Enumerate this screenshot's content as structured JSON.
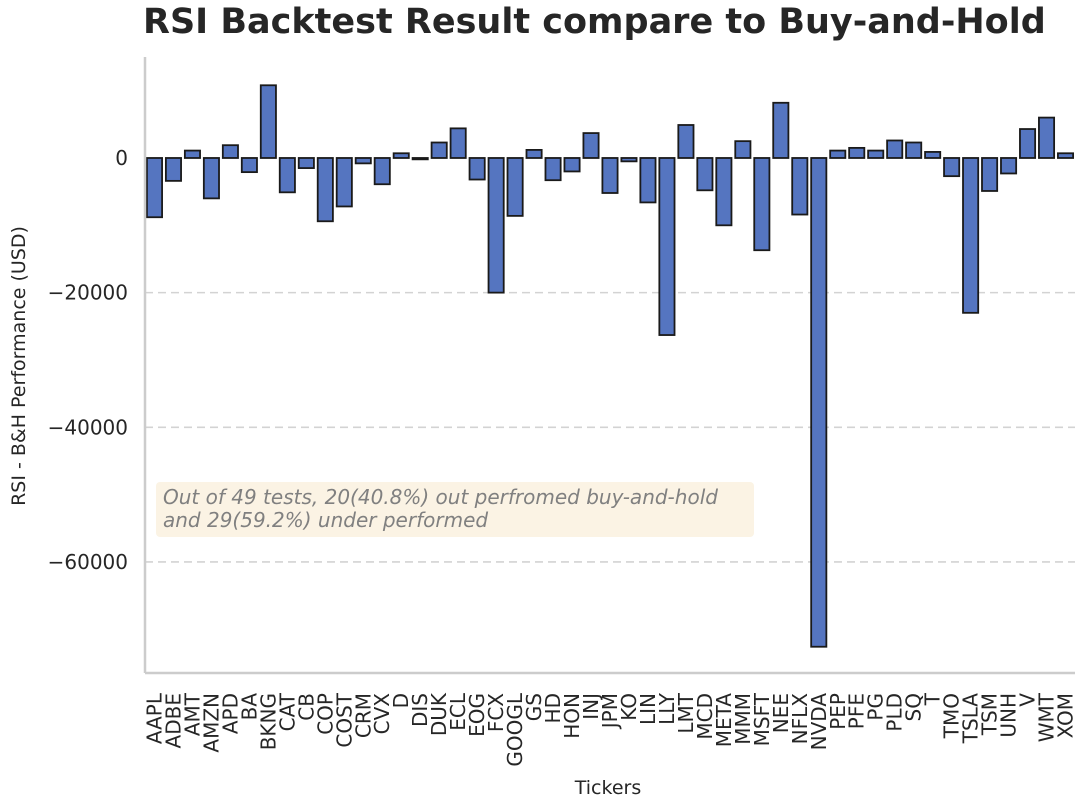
{
  "chart_data": {
    "type": "bar",
    "title": "RSI Backtest Result compare to Buy-and-Hold",
    "xlabel": "Tickers",
    "ylabel": "RSI - B&H Performance (USD)",
    "ylim": [
      -76500,
      15000
    ],
    "yticks": [
      0,
      -20000,
      -40000,
      -60000
    ],
    "ytick_labels": [
      "0",
      "−20000",
      "−40000",
      "−60000"
    ],
    "grid": "horizontal-dashed",
    "categories": [
      "AAPL",
      "ADBE",
      "AMT",
      "AMZN",
      "APD",
      "BA",
      "BKNG",
      "CAT",
      "CB",
      "COP",
      "COST",
      "CRM",
      "CVX",
      "D",
      "DIS",
      "DUK",
      "ECL",
      "EOG",
      "FCX",
      "GOOGL",
      "GS",
      "HD",
      "HON",
      "INJ",
      "JPM",
      "KO",
      "LIN",
      "LLY",
      "LMT",
      "MCD",
      "META",
      "MMM",
      "MSFT",
      "NEE",
      "NFLX",
      "NVDA",
      "PEP",
      "PFE",
      "PG",
      "PLD",
      "SQ",
      "T",
      "TMO",
      "TSLA",
      "TSM",
      "UNH",
      "V",
      "WMT",
      "XOM"
    ],
    "values": [
      -8800,
      -3400,
      1100,
      -6000,
      1900,
      -2100,
      10800,
      -5100,
      -1500,
      -9400,
      -7200,
      -800,
      -3900,
      700,
      -200,
      2300,
      4400,
      -3200,
      -20000,
      -8600,
      1200,
      -3300,
      -2000,
      3700,
      -5200,
      -500,
      -6600,
      -26300,
      4900,
      -4800,
      -10000,
      2500,
      -13700,
      8200,
      -8400,
      -72600,
      1100,
      1500,
      1100,
      2600,
      2300,
      900,
      -2700,
      -23000,
      -4900,
      -2300,
      4300,
      6000,
      700
    ],
    "color": "#5575c0",
    "edge_color": "#1a1a1a",
    "annotation_lines": [
      "Out of 49 tests, 20(40.8%) out perfromed buy-and-hold",
      "and 29(59.2%) under performed"
    ]
  }
}
